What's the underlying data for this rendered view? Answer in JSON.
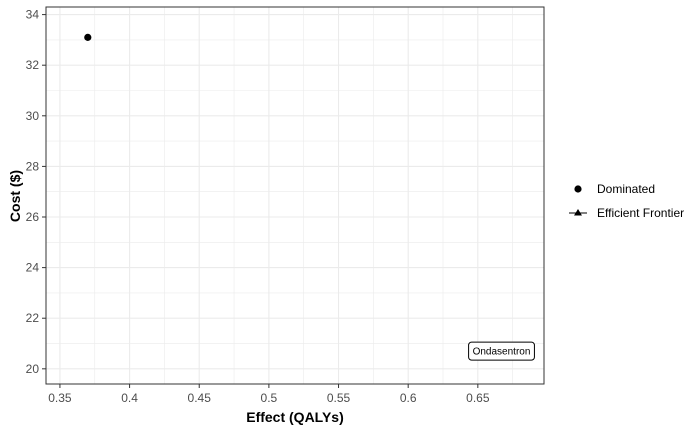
{
  "chart_data": {
    "type": "scatter",
    "xlabel": "Effect (QALYs)",
    "ylabel": "Cost ($)",
    "xlim": [
      0.34,
      0.6975
    ],
    "ylim": [
      19.4,
      34.3
    ],
    "xticks": [
      0.35,
      0.4,
      0.45,
      0.5,
      0.55,
      0.6,
      0.65
    ],
    "xtick_labels": [
      "0.35",
      "0.4",
      "0.45",
      "0.5",
      "0.55",
      "0.6",
      "0.65"
    ],
    "yticks": [
      20,
      22,
      24,
      26,
      28,
      30,
      32,
      34
    ],
    "ytick_labels": [
      "20",
      "22",
      "24",
      "26",
      "28",
      "30",
      "32",
      "34"
    ],
    "grid": true,
    "legend_position": "right",
    "series": [
      {
        "name": "Dominated",
        "marker": "circle",
        "points": [
          {
            "x": 0.37,
            "y": 33.1
          }
        ]
      },
      {
        "name": "Efficient Frontier",
        "marker": "triangle-line",
        "points": []
      }
    ],
    "annotations": [
      {
        "text": "Ondasentron",
        "x": 0.667,
        "y": 20.7
      }
    ],
    "colors": {
      "points": "#000000",
      "grid": "#ebebeb",
      "panel_border": "#333333"
    }
  }
}
